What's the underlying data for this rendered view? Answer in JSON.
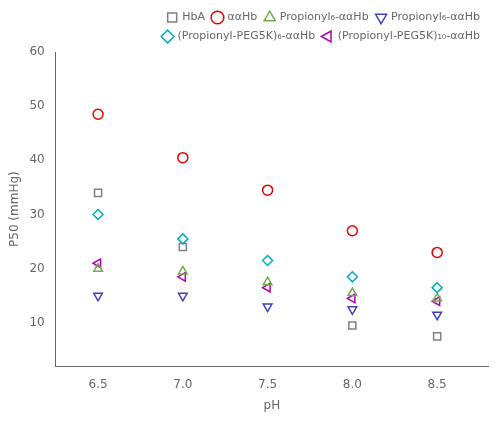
{
  "chart_data": {
    "type": "scatter",
    "xlabel": "pH",
    "ylabel": "P50 (mmHg)",
    "xlim": [
      6.25,
      8.8
    ],
    "xticks": [
      6.5,
      {
        "value": 7.0,
        "label": "7.0"
      },
      7.5,
      {
        "value": 8.0,
        "label": "8.0"
      },
      8.5
    ],
    "ylim": [
      2,
      60
    ],
    "yticks": [
      10,
      20,
      30,
      40,
      50,
      60
    ],
    "grid": false,
    "legend": "upper right",
    "series": [
      {
        "name": "HbA",
        "color": "#7f7f7f",
        "marker": "square",
        "x": [
          6.5,
          7.0,
          8.0,
          8.5
        ],
        "values": [
          34,
          24,
          9.5,
          7.5
        ]
      },
      {
        "name": "ααHb",
        "color": "#e60000",
        "marker": "circle",
        "x": [
          6.5,
          7.0,
          7.5,
          8.0,
          8.5
        ],
        "values": [
          48.5,
          40.5,
          34.5,
          27,
          23
        ]
      },
      {
        "name": "Propionyl₆-ααHb",
        "color": "#70ad47",
        "marker": "triangle-up",
        "x": [
          6.5,
          7.0,
          7.5,
          8.0,
          8.5
        ],
        "values": [
          20,
          19.5,
          17.5,
          15.5,
          14.5
        ]
      },
      {
        "name": "Propionyl₆-ααHb",
        "color": "#4040c0",
        "marker": "triangle-down",
        "x": [
          6.5,
          7.0,
          7.5,
          8.0,
          8.5
        ],
        "values": [
          15,
          15,
          13,
          12.5,
          11.5
        ]
      },
      {
        "name": "(Propionyl-PEG5K)₆-ααHb",
        "color": "#00b0c0",
        "marker": "diamond",
        "x": [
          6.5,
          7.0,
          7.5,
          8.0,
          8.5
        ],
        "values": [
          30,
          25.5,
          21.5,
          18.5,
          16.5
        ]
      },
      {
        "name": "(Propionyl-PEG5K)₁₀-ααHb",
        "color": "#b000b0",
        "marker": "triangle-left",
        "x": [
          6.5,
          7.0,
          7.5,
          8.0,
          8.5
        ],
        "values": [
          21,
          18.5,
          16.5,
          14.5,
          14
        ]
      }
    ]
  }
}
